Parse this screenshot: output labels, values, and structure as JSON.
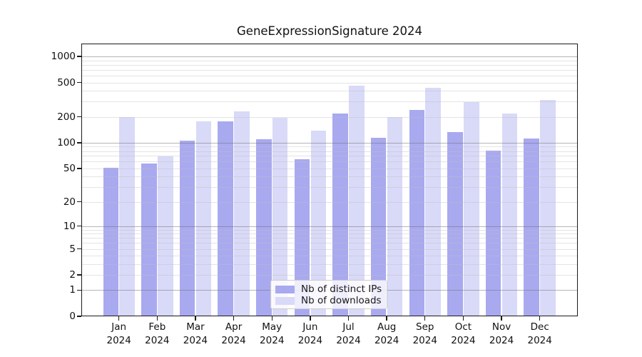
{
  "figure": {
    "background": "#ffffff"
  },
  "chart_data": {
    "type": "bar",
    "title": "GeneExpressionSignature 2024",
    "categories": [
      {
        "month": "Jan",
        "year": "2024"
      },
      {
        "month": "Feb",
        "year": "2024"
      },
      {
        "month": "Mar",
        "year": "2024"
      },
      {
        "month": "Apr",
        "year": "2024"
      },
      {
        "month": "May",
        "year": "2024"
      },
      {
        "month": "Jun",
        "year": "2024"
      },
      {
        "month": "Jul",
        "year": "2024"
      },
      {
        "month": "Aug",
        "year": "2024"
      },
      {
        "month": "Sep",
        "year": "2024"
      },
      {
        "month": "Oct",
        "year": "2024"
      },
      {
        "month": "Nov",
        "year": "2024"
      },
      {
        "month": "Dec",
        "year": "2024"
      }
    ],
    "series": [
      {
        "name": "Nb of distinct IPs",
        "color": "#a9a9f0",
        "values": [
          51,
          57,
          106,
          176,
          110,
          64,
          220,
          115,
          242,
          134,
          81,
          112
        ]
      },
      {
        "name": "Nb of downloads",
        "color": "#d9d9f8",
        "values": [
          200,
          69,
          178,
          232,
          196,
          139,
          460,
          198,
          435,
          298,
          220,
          313
        ]
      }
    ],
    "yscale": "log10(value+1)",
    "y_ticks": [
      0,
      1,
      2,
      5,
      10,
      20,
      50,
      100,
      200,
      500,
      1000
    ],
    "y_major_gridlines": [
      1,
      10,
      100,
      1000
    ],
    "ylim": [
      0,
      1400
    ],
    "xlabel": "",
    "ylabel": "",
    "grid": true,
    "legend_position": "lower-center"
  }
}
